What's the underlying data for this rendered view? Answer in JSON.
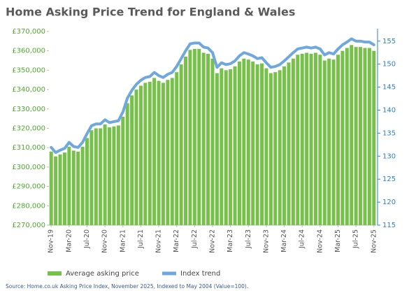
{
  "chart_data": {
    "type": "bar",
    "title": "Home Asking Price Trend for England & Wales",
    "source": "Source: Home.co.uk Asking Price Index, November 2025, Indexed to May 2004 (Value=100).",
    "categories": [
      "Nov-19",
      null,
      null,
      null,
      "Mar-20",
      null,
      null,
      null,
      "Jul-20",
      null,
      null,
      null,
      "Nov-20",
      null,
      null,
      null,
      "Mar-21",
      null,
      null,
      null,
      "Jul-21",
      null,
      null,
      null,
      "Nov-21",
      null,
      null,
      null,
      "Mar-22",
      null,
      null,
      null,
      "Jul-22",
      null,
      null,
      null,
      "Nov-22",
      null,
      null,
      null,
      "Mar-23",
      null,
      null,
      null,
      "Jul-23",
      null,
      null,
      null,
      "Nov-23",
      null,
      null,
      null,
      "Mar-24",
      null,
      null,
      null,
      "Jul-24",
      null,
      null,
      null,
      "Nov-24",
      null,
      null,
      null,
      "Mar-25",
      null,
      null,
      null,
      "Jul-25",
      null,
      null,
      null,
      "Nov-25"
    ],
    "series": [
      {
        "name": "Average asking price",
        "color": "#77c14a",
        "values": [
          308000,
          305500,
          306500,
          307500,
          310500,
          308500,
          308000,
          310500,
          315000,
          319000,
          320000,
          320000,
          322000,
          320500,
          321000,
          321500,
          326000,
          333000,
          337000,
          340000,
          342000,
          343500,
          344000,
          346000,
          344500,
          343500,
          345000,
          346000,
          349000,
          353000,
          357000,
          360500,
          361000,
          361000,
          359000,
          358500,
          356000,
          348500,
          351000,
          350000,
          350500,
          352000,
          354500,
          356000,
          355500,
          354500,
          353000,
          353500,
          351000,
          348500,
          349000,
          350000,
          352000,
          354000,
          356000,
          358000,
          358500,
          359000,
          358500,
          359000,
          358000,
          355000,
          356000,
          355500,
          358000,
          360000,
          361500,
          363000,
          362000,
          362000,
          361500,
          361500,
          360000
        ]
      },
      {
        "name": "Index trend",
        "color": "#6fa8dc",
        "type": "line",
        "axis": "y2",
        "values": [
          131.9,
          130.8,
          131.3,
          131.7,
          133.0,
          132.1,
          131.9,
          133.0,
          134.9,
          136.6,
          137.0,
          137.0,
          137.9,
          137.3,
          137.5,
          137.7,
          139.6,
          142.6,
          144.3,
          145.6,
          146.5,
          147.1,
          147.3,
          148.2,
          147.5,
          147.1,
          147.8,
          148.2,
          149.5,
          151.2,
          152.9,
          154.4,
          154.6,
          154.6,
          153.7,
          153.5,
          152.5,
          149.3,
          150.3,
          149.9,
          150.1,
          150.7,
          151.8,
          152.5,
          152.2,
          151.8,
          151.2,
          151.4,
          150.3,
          149.3,
          149.5,
          149.9,
          150.7,
          151.6,
          152.5,
          153.3,
          153.5,
          153.7,
          153.5,
          153.7,
          153.3,
          152.0,
          152.5,
          152.2,
          153.3,
          154.2,
          154.8,
          155.5,
          155.0,
          155.0,
          154.8,
          154.8,
          154.2
        ]
      }
    ],
    "ylim": [
      270000,
      370000
    ],
    "yticks": [
      {
        "value": 270000,
        "label": "£270,000"
      },
      {
        "value": 280000,
        "label": "£280,000"
      },
      {
        "value": 290000,
        "label": "£290,000"
      },
      {
        "value": 300000,
        "label": "£300,000"
      },
      {
        "value": 310000,
        "label": "£310,000"
      },
      {
        "value": 320000,
        "label": "£320,000"
      },
      {
        "value": 330000,
        "label": "£330,000"
      },
      {
        "value": 340000,
        "label": "£340,000"
      },
      {
        "value": 350000,
        "label": "£350,000"
      },
      {
        "value": 360000,
        "label": "£360,000"
      },
      {
        "value": 370000,
        "label": "£370,000"
      }
    ],
    "y2lim": [
      115,
      157.1
    ],
    "y2ticks": [
      115,
      120,
      125,
      130,
      135,
      140,
      145,
      150,
      155
    ],
    "grid": false,
    "legend": "bottom"
  }
}
